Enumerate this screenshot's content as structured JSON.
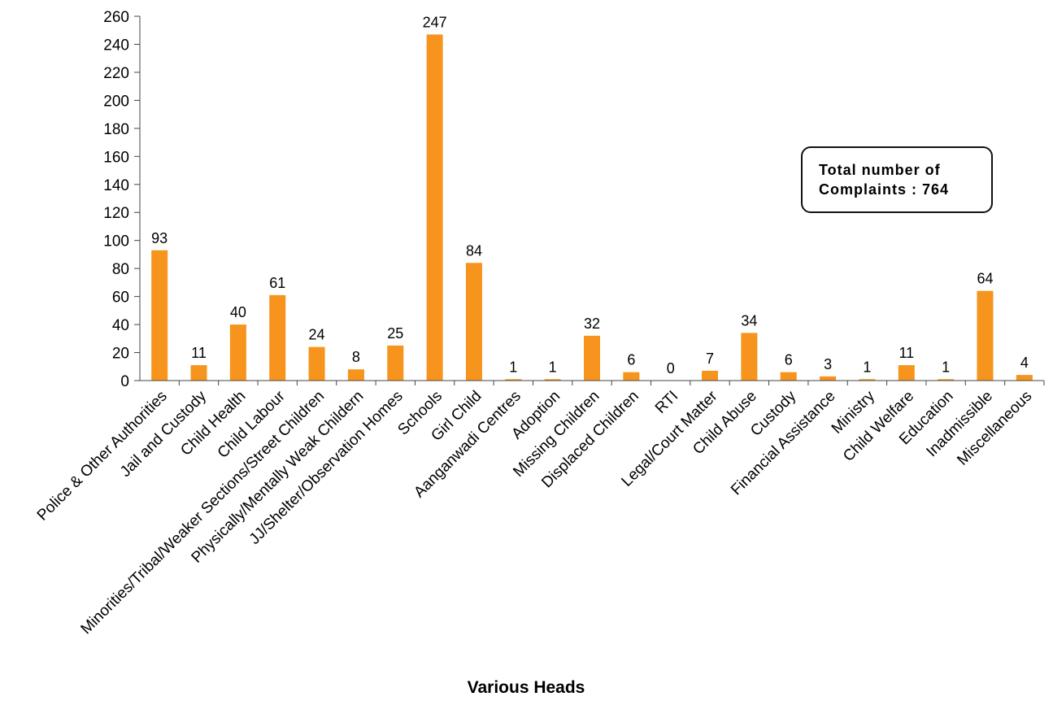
{
  "chart_data": {
    "type": "bar",
    "xlabel": "Various Heads",
    "ylabel": "",
    "ylim": [
      0,
      260
    ],
    "yticks": [
      0,
      20,
      40,
      60,
      80,
      100,
      120,
      140,
      160,
      180,
      200,
      220,
      240,
      260
    ],
    "grid": false,
    "bar_color": "#F7941D",
    "categories": [
      "Police & Other Authorities",
      "Jail and Custody",
      "Child Health",
      "Child Labour",
      "Minorities/Tribal/Weaker Sections/Street Children",
      "Physically/Mentally Weak Childern",
      "JJ/Shelter/Observation Homes",
      "Schools",
      "Girl Child",
      "Aanganwadi Centres",
      "Adoption",
      "Missing Children",
      "Displaced Children",
      "RTI",
      "Legal/Court Matter",
      "Child Abuse",
      "Custody",
      "Financial Assistance",
      "Ministry",
      "Child Welfare",
      "Education",
      "Inadmissible",
      "Miscellaneous"
    ],
    "values": [
      93,
      11,
      40,
      61,
      24,
      8,
      25,
      247,
      84,
      1,
      1,
      32,
      6,
      0,
      7,
      34,
      6,
      3,
      1,
      11,
      1,
      64,
      4
    ],
    "annotation": "Total number of\nComplaints : 764"
  }
}
